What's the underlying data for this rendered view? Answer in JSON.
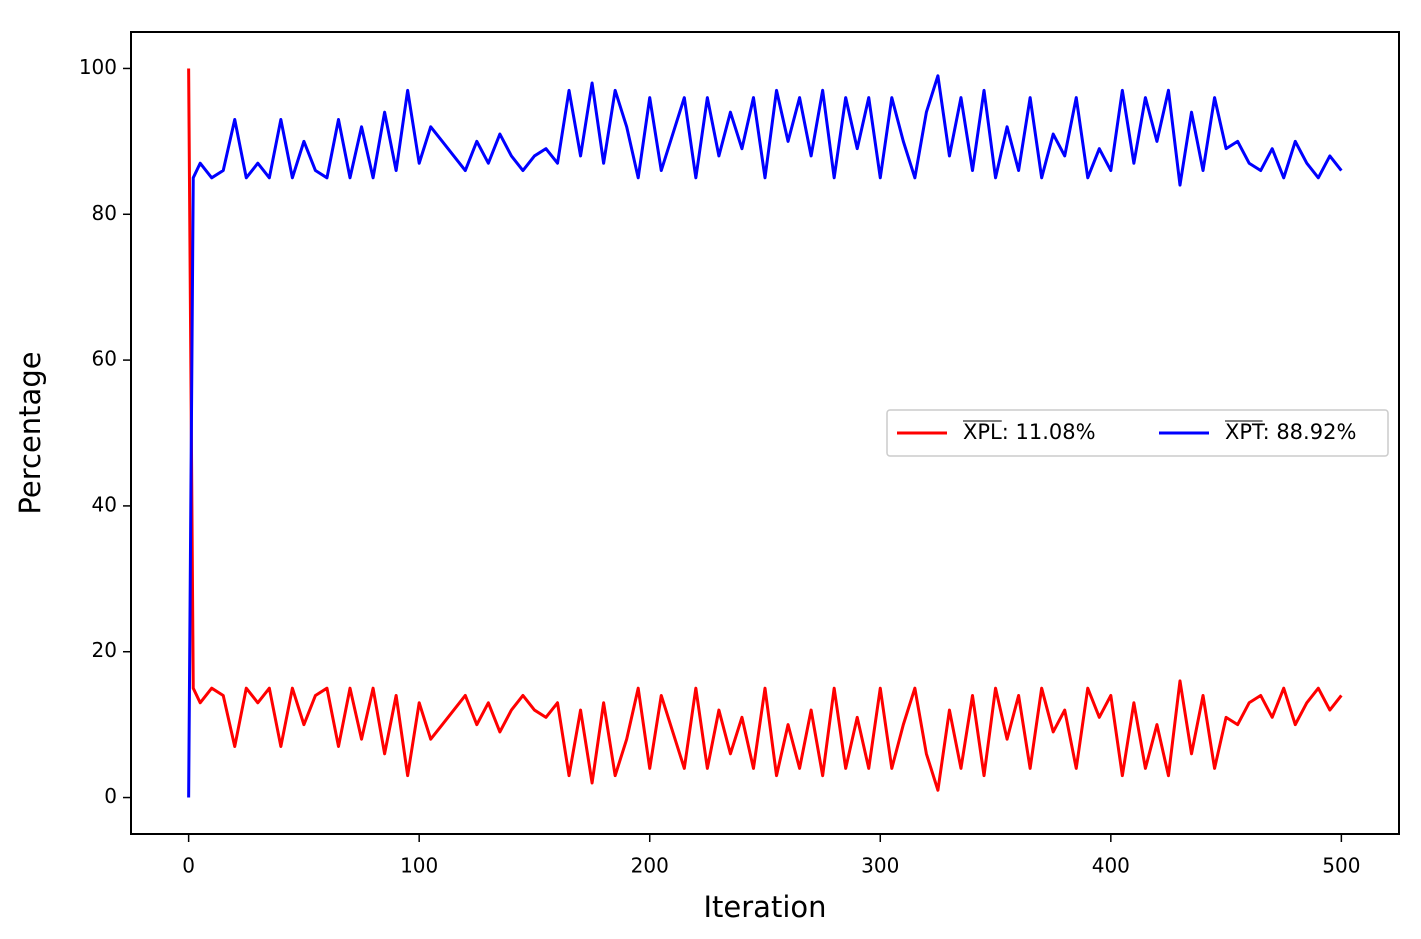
{
  "chart_data": {
    "type": "line",
    "x_label": "Iteration",
    "y_label": "Percentage",
    "x": [
      0,
      2,
      5,
      10,
      15,
      20,
      25,
      30,
      35,
      40,
      45,
      50,
      55,
      60,
      65,
      70,
      75,
      80,
      85,
      90,
      95,
      100,
      105,
      110,
      115,
      120,
      125,
      130,
      135,
      140,
      145,
      150,
      155,
      160,
      165,
      170,
      175,
      180,
      185,
      190,
      195,
      200,
      205,
      210,
      215,
      220,
      225,
      230,
      235,
      240,
      245,
      250,
      255,
      260,
      265,
      270,
      275,
      280,
      285,
      290,
      295,
      300,
      305,
      310,
      315,
      320,
      325,
      330,
      335,
      340,
      345,
      350,
      355,
      360,
      365,
      370,
      375,
      380,
      385,
      390,
      395,
      400,
      405,
      410,
      415,
      420,
      425,
      430,
      435,
      440,
      445,
      450,
      455,
      460,
      465,
      470,
      475,
      480,
      485,
      490,
      495,
      500
    ],
    "series": [
      {
        "name": "XPL: 11.08%",
        "color": "#ff0000",
        "values": [
          100,
          15,
          13,
          15,
          14,
          7,
          15,
          13,
          15,
          7,
          15,
          10,
          14,
          15,
          7,
          15,
          8,
          15,
          6,
          14,
          3,
          13,
          8,
          10,
          12,
          14,
          10,
          13,
          9,
          12,
          14,
          12,
          11,
          13,
          3,
          12,
          2,
          13,
          3,
          8,
          15,
          4,
          14,
          9,
          4,
          15,
          4,
          12,
          6,
          11,
          4,
          15,
          3,
          10,
          4,
          12,
          3,
          15,
          4,
          11,
          4,
          15,
          4,
          10,
          15,
          6,
          1,
          12,
          4,
          14,
          3,
          15,
          8,
          14,
          4,
          15,
          9,
          12,
          4,
          15,
          11,
          14,
          3,
          13,
          4,
          10,
          3,
          16,
          6,
          14,
          4,
          11,
          10,
          13,
          14,
          11,
          15,
          10,
          13,
          15,
          12,
          14
        ]
      },
      {
        "name": "XPT: 88.92%",
        "color": "#0000ff",
        "values": [
          0,
          85,
          87,
          85,
          86,
          93,
          85,
          87,
          85,
          93,
          85,
          90,
          86,
          85,
          93,
          85,
          92,
          85,
          94,
          86,
          97,
          87,
          92,
          90,
          88,
          86,
          90,
          87,
          91,
          88,
          86,
          88,
          89,
          87,
          97,
          88,
          98,
          87,
          97,
          92,
          85,
          96,
          86,
          91,
          96,
          85,
          96,
          88,
          94,
          89,
          96,
          85,
          97,
          90,
          96,
          88,
          97,
          85,
          96,
          89,
          96,
          85,
          96,
          90,
          85,
          94,
          99,
          88,
          96,
          86,
          97,
          85,
          92,
          86,
          96,
          85,
          91,
          88,
          96,
          85,
          89,
          86,
          97,
          87,
          96,
          90,
          97,
          84,
          94,
          86,
          96,
          89,
          90,
          87,
          86,
          89,
          85,
          90,
          87,
          85,
          88,
          86
        ]
      }
    ],
    "xlim": [
      -25,
      525
    ],
    "ylim": [
      -5,
      105
    ],
    "xticks": [
      0,
      100,
      200,
      300,
      400,
      500
    ],
    "yticks": [
      0,
      20,
      40,
      60,
      80,
      100
    ],
    "legend": "center right"
  }
}
